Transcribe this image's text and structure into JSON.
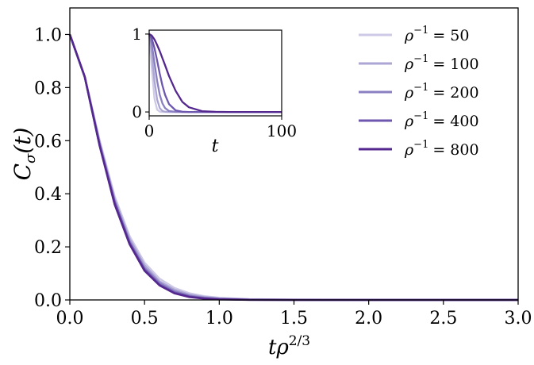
{
  "chart_data": [
    {
      "type": "line",
      "panel": "main",
      "xlabel": "tρ^{2/3}",
      "xlabel_parts": {
        "t": "t",
        "rho": "ρ",
        "exp": "2/3"
      },
      "ylabel": "C_σ(t)",
      "ylabel_parts": {
        "C": "C",
        "sub": "σ",
        "arg": "(t)"
      },
      "xlim": [
        0,
        3.0
      ],
      "ylim": [
        0,
        1.1
      ],
      "xticks": [
        "0.0",
        "0.5",
        "1.0",
        "1.5",
        "2.0",
        "2.5",
        "3.0"
      ],
      "yticks": [
        "0.0",
        "0.2",
        "0.4",
        "0.6",
        "0.8",
        "1.0"
      ],
      "grid": false,
      "legend_position": "top-right",
      "x": [
        0.0,
        0.1,
        0.2,
        0.3,
        0.4,
        0.5,
        0.6,
        0.7,
        0.8,
        0.9,
        1.0,
        1.2,
        1.5,
        2.0,
        2.5,
        3.0
      ],
      "series": [
        {
          "name": "ρ^{-1} = 50",
          "color": "#cdc9e6",
          "values": [
            1.0,
            0.84,
            0.6,
            0.39,
            0.24,
            0.14,
            0.08,
            0.045,
            0.025,
            0.014,
            0.008,
            0.003,
            0.001,
            0.0,
            0.0,
            0.0
          ]
        },
        {
          "name": "ρ^{-1} = 100",
          "color": "#aca6d4",
          "values": [
            1.0,
            0.84,
            0.59,
            0.38,
            0.23,
            0.13,
            0.07,
            0.038,
            0.02,
            0.011,
            0.006,
            0.002,
            0.0005,
            0.0,
            0.0,
            0.0
          ]
        },
        {
          "name": "ρ^{-1} = 200",
          "color": "#8a7fc0",
          "values": [
            1.0,
            0.84,
            0.59,
            0.37,
            0.22,
            0.12,
            0.064,
            0.032,
            0.016,
            0.008,
            0.004,
            0.001,
            0.0002,
            0.0,
            0.0,
            0.0
          ]
        },
        {
          "name": "ρ^{-1} = 400",
          "color": "#6e57ae",
          "values": [
            1.0,
            0.84,
            0.58,
            0.37,
            0.215,
            0.115,
            0.058,
            0.028,
            0.013,
            0.006,
            0.003,
            0.0006,
            0.0001,
            0.0,
            0.0,
            0.0
          ]
        },
        {
          "name": "ρ^{-1} = 800",
          "color": "#54278f",
          "values": [
            1.0,
            0.84,
            0.58,
            0.36,
            0.21,
            0.11,
            0.055,
            0.025,
            0.011,
            0.005,
            0.002,
            0.0004,
            0.0,
            0.0,
            0.0,
            0.0
          ]
        }
      ],
      "legend_labels": [
        {
          "rho": "ρ",
          "exp": "−1",
          "eq": "= 50"
        },
        {
          "rho": "ρ",
          "exp": "−1",
          "eq": "= 100"
        },
        {
          "rho": "ρ",
          "exp": "−1",
          "eq": "= 200"
        },
        {
          "rho": "ρ",
          "exp": "−1",
          "eq": "= 400"
        },
        {
          "rho": "ρ",
          "exp": "−1",
          "eq": "= 800"
        }
      ]
    },
    {
      "type": "line",
      "panel": "inset",
      "xlabel": "t",
      "ylabel": "",
      "xlim": [
        0,
        100
      ],
      "ylim": [
        -0.05,
        1.05
      ],
      "xticks": [
        "0",
        "100"
      ],
      "yticks": [
        "0",
        "1"
      ],
      "grid": false,
      "x": [
        0,
        2,
        4,
        6,
        8,
        10,
        12,
        15,
        20,
        25,
        30,
        40,
        50,
        60,
        70,
        80,
        100
      ],
      "series": [
        {
          "name": "ρ^{-1} = 50",
          "color": "#cdc9e6",
          "values": [
            1.0,
            0.55,
            0.17,
            0.03,
            0.004,
            0.0,
            0.0,
            0.0,
            0.0,
            0.0,
            0.0,
            0.0,
            0.0,
            0.0,
            0.0,
            0.0,
            0.0
          ]
        },
        {
          "name": "ρ^{-1} = 100",
          "color": "#aca6d4",
          "values": [
            1.0,
            0.75,
            0.4,
            0.16,
            0.05,
            0.012,
            0.003,
            0.0,
            0.0,
            0.0,
            0.0,
            0.0,
            0.0,
            0.0,
            0.0,
            0.0,
            0.0
          ]
        },
        {
          "name": "ρ^{-1} = 200",
          "color": "#8a7fc0",
          "values": [
            1.0,
            0.87,
            0.63,
            0.4,
            0.22,
            0.11,
            0.05,
            0.012,
            0.001,
            0.0,
            0.0,
            0.0,
            0.0,
            0.0,
            0.0,
            0.0,
            0.0
          ]
        },
        {
          "name": "ρ^{-1} = 400",
          "color": "#6e57ae",
          "values": [
            1.0,
            0.94,
            0.82,
            0.66,
            0.49,
            0.34,
            0.22,
            0.1,
            0.02,
            0.003,
            0.0,
            0.0,
            0.0,
            0.0,
            0.0,
            0.0,
            0.0
          ]
        },
        {
          "name": "ρ^{-1} = 800",
          "color": "#54278f",
          "values": [
            1.0,
            0.98,
            0.93,
            0.86,
            0.78,
            0.69,
            0.6,
            0.46,
            0.27,
            0.13,
            0.06,
            0.01,
            0.002,
            0.0,
            0.0,
            0.0,
            0.0
          ]
        }
      ]
    }
  ]
}
